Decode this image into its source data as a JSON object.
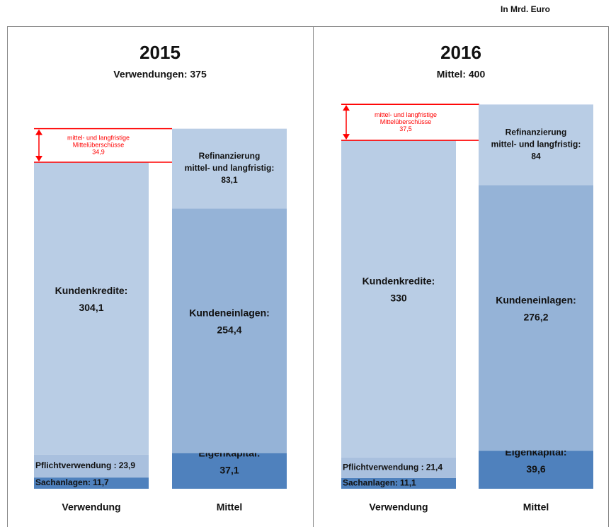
{
  "unit_note": "In Mrd. Euro",
  "chart_data": [
    {
      "type": "stacked_bar",
      "title": "2015",
      "subtitle": "Verwendungen: 375",
      "bars": [
        {
          "category": "Verwendung",
          "segments": [
            {
              "name_lines": [
                "Sachanlagen:"
              ],
              "value": 11.7,
              "value_label": "11,7",
              "color": "#4f81bd"
            },
            {
              "name_lines": [
                "Pflichtverwendung :"
              ],
              "value": 23.9,
              "value_label": "23,9",
              "color": "#a9c0de"
            },
            {
              "name_lines": [
                "Kundenkredite:"
              ],
              "value": 304.1,
              "value_label": "304,1",
              "color": "#b9cde5"
            },
            {
              "name_lines": [
                "mittel- und langfristige",
                "Mittelüberschüsse"
              ],
              "value": 34.9,
              "value_label": "34,9",
              "color": "#ffffff",
              "highlight": "#ff0000"
            }
          ]
        },
        {
          "category": "Mittel",
          "segments": [
            {
              "name_lines": [
                "Eigenkapital:"
              ],
              "value": 37.1,
              "value_label": "37,1",
              "color": "#4f81bd"
            },
            {
              "name_lines": [
                "Kundeneinlagen:"
              ],
              "value": 254.4,
              "value_label": "254,4",
              "color": "#95b3d7"
            },
            {
              "name_lines": [
                "Refinanzierung",
                "mittel- und langfristig:"
              ],
              "value": 83.1,
              "value_label": "83,1",
              "color": "#b9cde5"
            }
          ]
        }
      ]
    },
    {
      "type": "stacked_bar",
      "title": "2016",
      "subtitle": "Mittel: 400",
      "bars": [
        {
          "category": "Verwendung",
          "segments": [
            {
              "name_lines": [
                "Sachanlagen:"
              ],
              "value": 11.1,
              "value_label": "11,1",
              "color": "#4f81bd"
            },
            {
              "name_lines": [
                "Pflichtverwendung :"
              ],
              "value": 21.4,
              "value_label": "21,4",
              "color": "#a9c0de"
            },
            {
              "name_lines": [
                "Kundenkredite:"
              ],
              "value": 330,
              "value_label": "330",
              "color": "#b9cde5"
            },
            {
              "name_lines": [
                "mittel- und langfristige",
                "Mittelüberschüsse"
              ],
              "value": 37.5,
              "value_label": "37,5",
              "color": "#ffffff",
              "highlight": "#ff0000"
            }
          ]
        },
        {
          "category": "Mittel",
          "segments": [
            {
              "name_lines": [
                "Eigenkapital:"
              ],
              "value": 39.6,
              "value_label": "39,6",
              "color": "#4f81bd"
            },
            {
              "name_lines": [
                "Kundeneinlagen:"
              ],
              "value": 276.2,
              "value_label": "276,2",
              "color": "#95b3d7"
            },
            {
              "name_lines": [
                "Refinanzierung",
                "mittel- und langfristig:"
              ],
              "value": 84,
              "value_label": "84",
              "color": "#b9cde5"
            }
          ]
        }
      ]
    }
  ]
}
